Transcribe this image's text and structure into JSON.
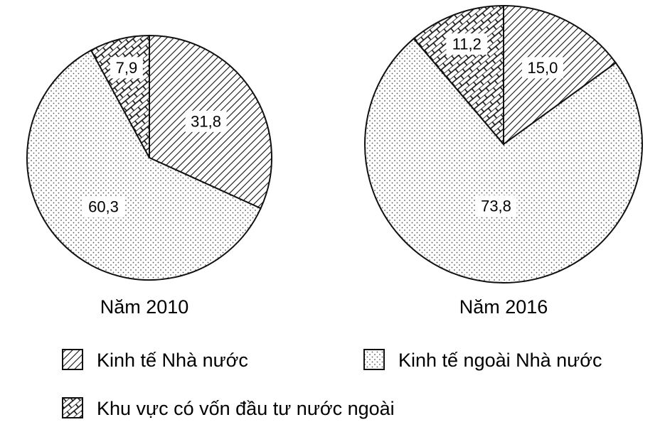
{
  "chart_data": {
    "type": "pie",
    "categories": [
      "Kinh tế Nhà nước",
      "Kinh tế ngoài Nhà nước",
      "Khu vực có vốn đầu tư nước ngoài"
    ],
    "pies": [
      {
        "caption": "Năm 2010",
        "values": [
          31.8,
          60.3,
          7.9
        ],
        "labels": [
          "31,8",
          "60,3",
          "7,9"
        ]
      },
      {
        "caption": "Năm 2016",
        "values": [
          15.0,
          73.8,
          11.2
        ],
        "labels": [
          "15,0",
          "73,8",
          "11,2"
        ]
      }
    ],
    "legend": [
      {
        "label": "Kinh tế Nhà nước",
        "pattern": "diagonal-hatch"
      },
      {
        "label": "Kinh tế ngoài Nhà nước",
        "pattern": "dots"
      },
      {
        "label": "Khu vực có vốn đầu tư nước ngoài",
        "pattern": "brick"
      }
    ],
    "legend_position": "bottom",
    "colors": {
      "stroke": "#111111",
      "fill": "#ffffff"
    }
  }
}
